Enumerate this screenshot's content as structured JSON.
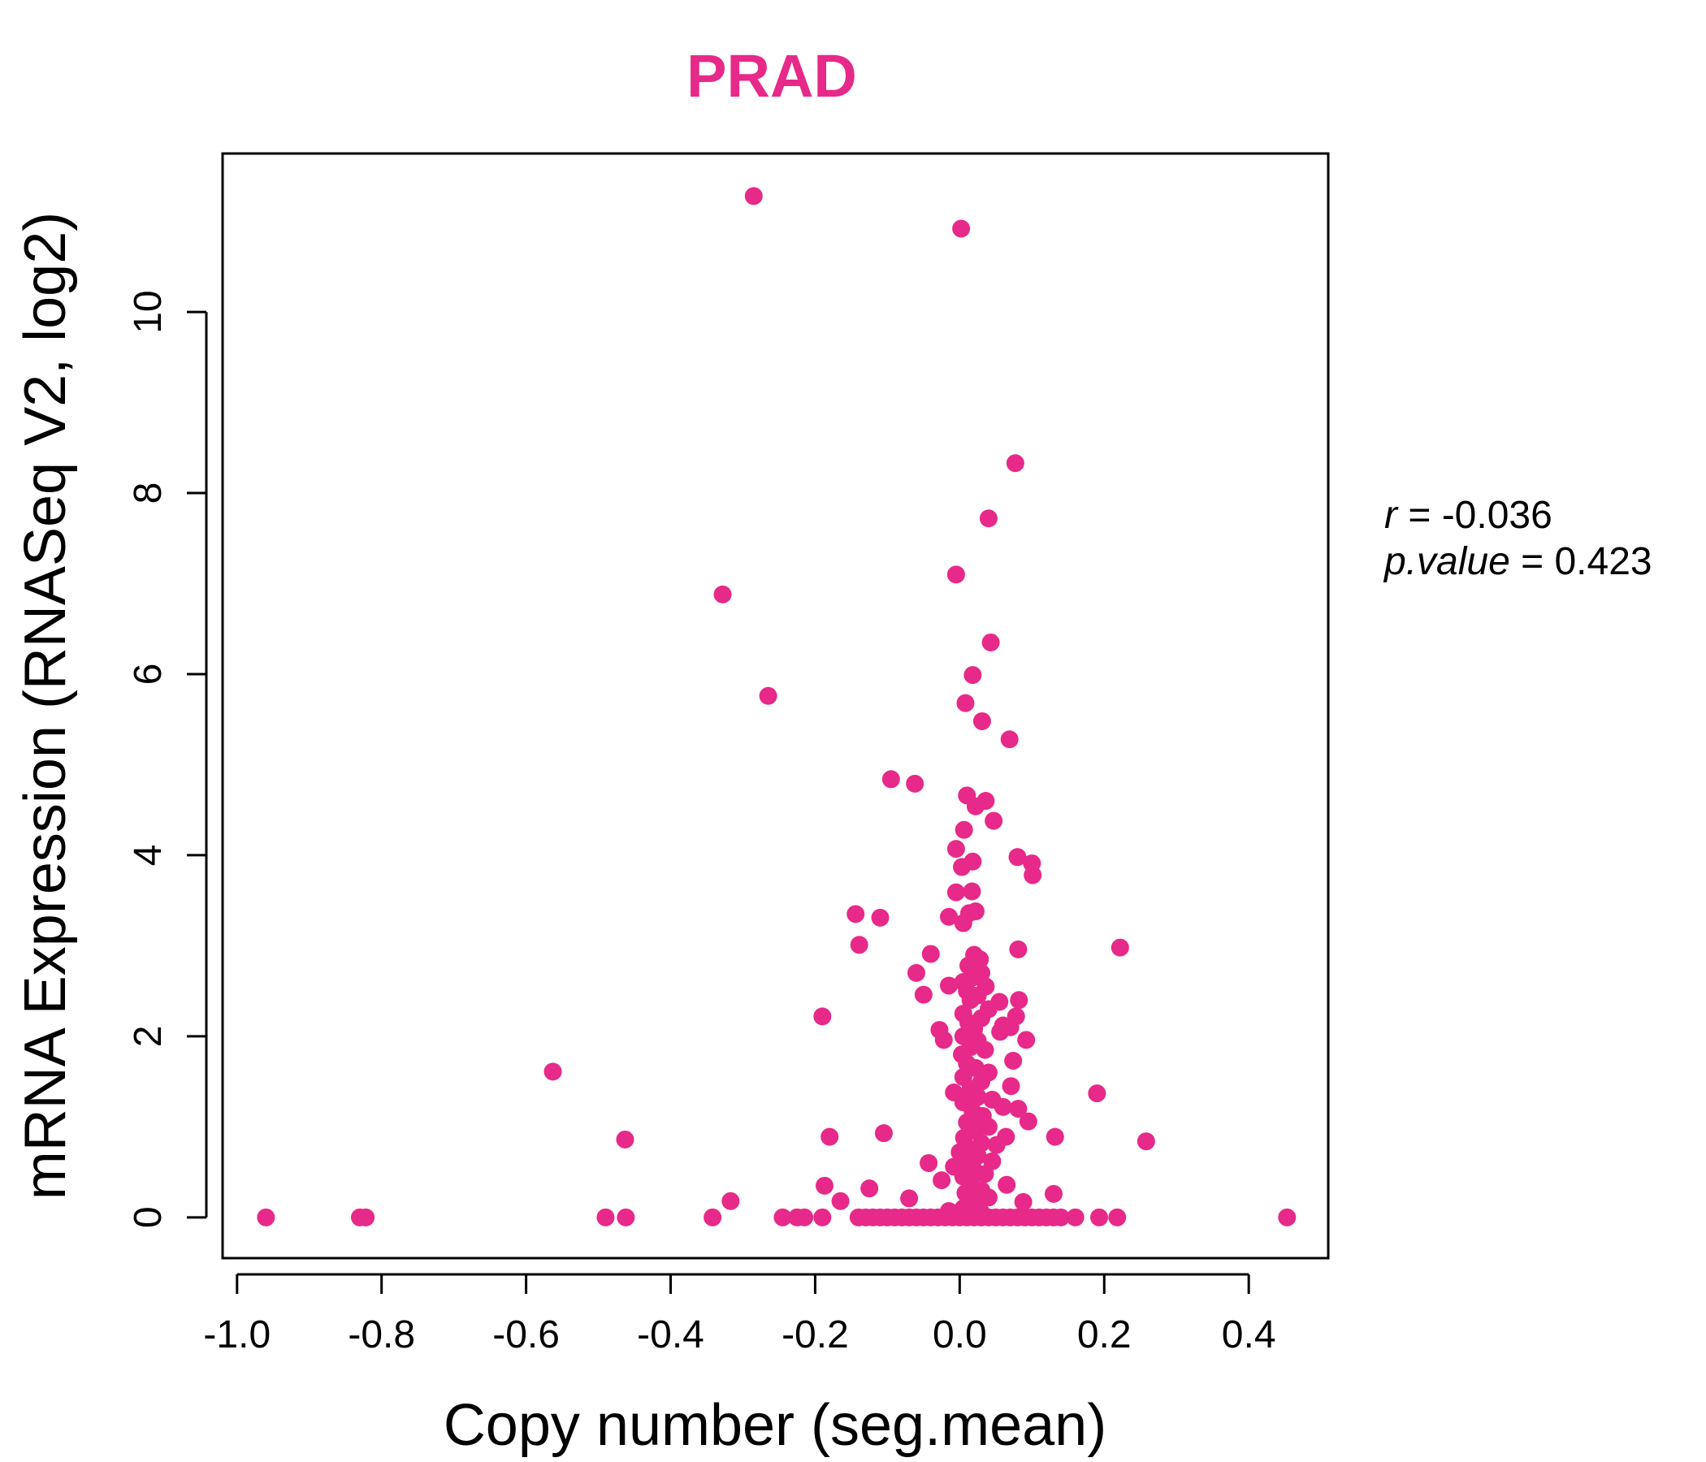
{
  "colors": {
    "accent": "#E7298A",
    "axis": "#000000"
  },
  "stats": {
    "r_label": "r",
    "r_value": "-0.036",
    "p_label": "p.value",
    "p_value": "0.423"
  },
  "chart_data": {
    "type": "scatter",
    "title": "PRAD",
    "xlabel": "Copy number (seg.mean)",
    "ylabel": "mRNA Expression (RNASeq V2, log2)",
    "xlim": [
      -1.02,
      0.51
    ],
    "ylim": [
      -0.45,
      11.75
    ],
    "xticks": [
      -1.0,
      -0.8,
      -0.6,
      -0.4,
      -0.2,
      0.0,
      0.2,
      0.4
    ],
    "xtick_labels": [
      "-1.0",
      "-0.8",
      "-0.6",
      "-0.4",
      "-0.2",
      "0.0",
      "0.2",
      "0.4"
    ],
    "yticks": [
      0,
      2,
      4,
      6,
      8,
      10
    ],
    "ytick_labels": [
      "0",
      "2",
      "4",
      "6",
      "8",
      "10"
    ],
    "grid": false,
    "legend": "none",
    "points": [
      [
        -0.285,
        11.28
      ],
      [
        0.002,
        10.92
      ],
      [
        0.077,
        8.33
      ],
      [
        0.04,
        7.72
      ],
      [
        -0.005,
        7.1
      ],
      [
        -0.328,
        6.88
      ],
      [
        0.043,
        6.35
      ],
      [
        0.018,
        5.99
      ],
      [
        -0.265,
        5.76
      ],
      [
        0.008,
        5.68
      ],
      [
        0.031,
        5.48
      ],
      [
        0.069,
        5.28
      ],
      [
        -0.095,
        4.84
      ],
      [
        -0.062,
        4.79
      ],
      [
        0.01,
        4.66
      ],
      [
        0.036,
        4.6
      ],
      [
        0.022,
        4.54
      ],
      [
        0.047,
        4.38
      ],
      [
        0.006,
        4.28
      ],
      [
        -0.005,
        4.07
      ],
      [
        0.08,
        3.98
      ],
      [
        0.1,
        3.91
      ],
      [
        0.018,
        3.93
      ],
      [
        0.003,
        3.87
      ],
      [
        0.101,
        3.78
      ],
      [
        -0.005,
        3.59
      ],
      [
        0.017,
        3.6
      ],
      [
        -0.144,
        3.35
      ],
      [
        -0.11,
        3.31
      ],
      [
        -0.015,
        3.32
      ],
      [
        0.013,
        3.36
      ],
      [
        0.022,
        3.38
      ],
      [
        0.005,
        3.25
      ],
      [
        -0.139,
        3.01
      ],
      [
        0.222,
        2.98
      ],
      [
        0.081,
        2.96
      ],
      [
        -0.04,
        2.91
      ],
      [
        0.02,
        2.9
      ],
      [
        0.028,
        2.85
      ],
      [
        0.012,
        2.78
      ],
      [
        -0.06,
        2.7
      ],
      [
        0.018,
        2.65
      ],
      [
        0.03,
        2.7
      ],
      [
        0.005,
        2.6
      ],
      [
        -0.015,
        2.56
      ],
      [
        0.036,
        2.55
      ],
      [
        0.01,
        2.5
      ],
      [
        -0.05,
        2.46
      ],
      [
        0.025,
        2.45
      ],
      [
        0.015,
        2.4
      ],
      [
        0.055,
        2.38
      ],
      [
        0.082,
        2.4
      ],
      [
        0.04,
        2.3
      ],
      [
        0.005,
        2.25
      ],
      [
        0.078,
        2.22
      ],
      [
        -0.19,
        2.22
      ],
      [
        0.03,
        2.2
      ],
      [
        0.06,
        2.12
      ],
      [
        0.012,
        2.15
      ],
      [
        0.07,
        2.1
      ],
      [
        0.02,
        2.08
      ],
      [
        -0.028,
        2.07
      ],
      [
        0.056,
        2.05
      ],
      [
        0.005,
        2.0
      ],
      [
        -0.022,
        1.96
      ],
      [
        0.092,
        1.96
      ],
      [
        0.025,
        1.95
      ],
      [
        0.015,
        1.88
      ],
      [
        0.035,
        1.85
      ],
      [
        0.003,
        1.8
      ],
      [
        0.074,
        1.73
      ],
      [
        0.01,
        1.7
      ],
      [
        0.022,
        1.65
      ],
      [
        0.04,
        1.6
      ],
      [
        -0.563,
        1.61
      ],
      [
        0.005,
        1.55
      ],
      [
        0.03,
        1.5
      ],
      [
        0.071,
        1.45
      ],
      [
        0.015,
        1.42
      ],
      [
        -0.008,
        1.38
      ],
      [
        0.19,
        1.37
      ],
      [
        0.025,
        1.33
      ],
      [
        0.045,
        1.3
      ],
      [
        0.005,
        1.27
      ],
      [
        0.06,
        1.22
      ],
      [
        0.081,
        1.2
      ],
      [
        0.018,
        1.17
      ],
      [
        0.032,
        1.12
      ],
      [
        0.095,
        1.06
      ],
      [
        0.01,
        1.05
      ],
      [
        0.04,
        1.0
      ],
      [
        -0.105,
        0.93
      ],
      [
        0.022,
        0.96
      ],
      [
        0.064,
        0.89
      ],
      [
        0.132,
        0.89
      ],
      [
        -0.18,
        0.89
      ],
      [
        0.006,
        0.88
      ],
      [
        -0.463,
        0.86
      ],
      [
        0.258,
        0.84
      ],
      [
        0.03,
        0.82
      ],
      [
        0.051,
        0.8
      ],
      [
        0.012,
        0.76
      ],
      [
        0.0,
        0.72
      ],
      [
        0.025,
        0.68
      ],
      [
        0.045,
        0.62
      ],
      [
        -0.043,
        0.6
      ],
      [
        0.008,
        0.58
      ],
      [
        -0.008,
        0.56
      ],
      [
        0.02,
        0.52
      ],
      [
        0.035,
        0.48
      ],
      [
        0.005,
        0.45
      ],
      [
        -0.025,
        0.41
      ],
      [
        0.015,
        0.4
      ],
      [
        0.065,
        0.36
      ],
      [
        -0.187,
        0.35
      ],
      [
        -0.125,
        0.32
      ],
      [
        0.03,
        0.3
      ],
      [
        0.008,
        0.27
      ],
      [
        0.13,
        0.26
      ],
      [
        0.04,
        0.22
      ],
      [
        -0.07,
        0.21
      ],
      [
        0.012,
        0.19
      ],
      [
        -0.317,
        0.18
      ],
      [
        -0.165,
        0.18
      ],
      [
        0.088,
        0.17
      ],
      [
        0.02,
        0.14
      ],
      [
        0.005,
        0.1
      ],
      [
        -0.015,
        0.07
      ],
      [
        0.03,
        0.05
      ],
      [
        0.01,
        0.03
      ],
      [
        -0.96,
        0.0
      ],
      [
        -0.83,
        0.0
      ],
      [
        -0.822,
        0.0
      ],
      [
        -0.49,
        0.0
      ],
      [
        -0.462,
        0.0
      ],
      [
        -0.342,
        0.0
      ],
      [
        -0.245,
        0.0
      ],
      [
        -0.225,
        0.0
      ],
      [
        -0.215,
        0.0
      ],
      [
        -0.19,
        0.0
      ],
      [
        -0.14,
        0.0
      ],
      [
        -0.13,
        0.0
      ],
      [
        -0.12,
        0.0
      ],
      [
        -0.11,
        0.0
      ],
      [
        -0.1,
        0.0
      ],
      [
        -0.09,
        0.0
      ],
      [
        -0.08,
        0.0
      ],
      [
        -0.07,
        0.0
      ],
      [
        -0.06,
        0.0
      ],
      [
        -0.05,
        0.0
      ],
      [
        -0.04,
        0.0
      ],
      [
        -0.03,
        0.0
      ],
      [
        -0.02,
        0.0
      ],
      [
        -0.01,
        0.0
      ],
      [
        0.0,
        0.0
      ],
      [
        0.01,
        0.0
      ],
      [
        0.02,
        0.0
      ],
      [
        0.03,
        0.0
      ],
      [
        0.04,
        0.0
      ],
      [
        0.05,
        0.0
      ],
      [
        0.06,
        0.0
      ],
      [
        0.07,
        0.0
      ],
      [
        0.08,
        0.0
      ],
      [
        0.09,
        0.0
      ],
      [
        0.1,
        0.0
      ],
      [
        0.11,
        0.0
      ],
      [
        0.12,
        0.0
      ],
      [
        0.13,
        0.0
      ],
      [
        0.14,
        0.0
      ],
      [
        0.16,
        0.0
      ],
      [
        0.193,
        0.0
      ],
      [
        0.218,
        0.0
      ],
      [
        0.453,
        0.0
      ]
    ]
  }
}
